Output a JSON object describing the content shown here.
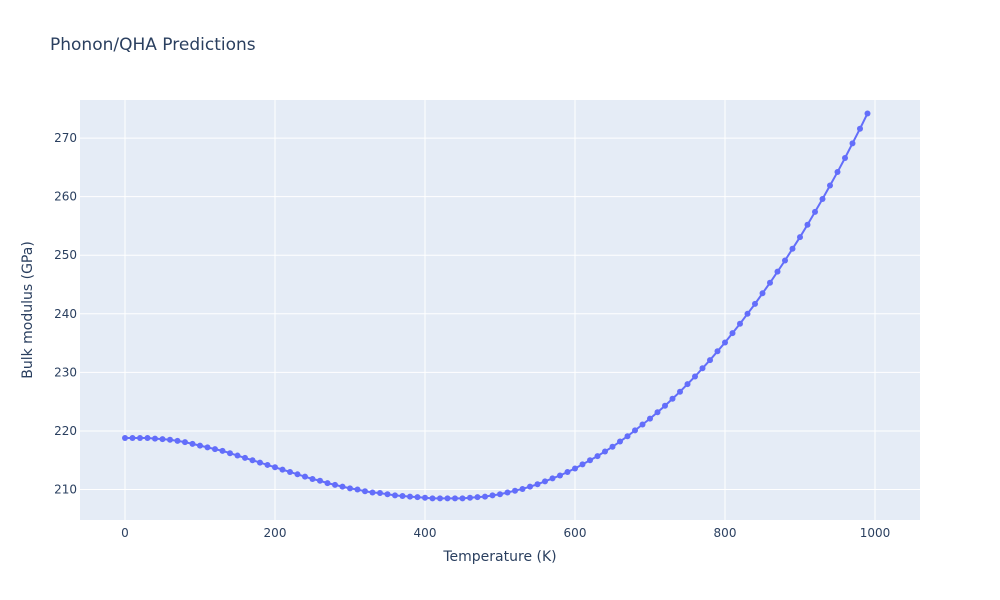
{
  "chart_data": {
    "type": "line",
    "title": "Phonon/QHA Predictions",
    "xlabel": "Temperature (K)",
    "ylabel": "Bulk modulus (GPa)",
    "xlim": [
      -60,
      1060
    ],
    "ylim": [
      204.8,
      276.5
    ],
    "x_ticks": [
      0,
      200,
      400,
      600,
      800,
      1000
    ],
    "y_ticks": [
      210,
      220,
      230,
      240,
      250,
      260,
      270
    ],
    "grid": true,
    "legend": "none",
    "colors": {
      "series": "#636efa",
      "plot_background": "#e5ecf6",
      "grid": "#ffffff",
      "text": "#2a3f5f"
    },
    "series": [
      {
        "x": [
          0,
          10,
          20,
          30,
          40,
          50,
          60,
          70,
          80,
          90,
          100,
          110,
          120,
          130,
          140,
          150,
          160,
          170,
          180,
          190,
          200,
          210,
          220,
          230,
          240,
          250,
          260,
          270,
          280,
          290,
          300,
          310,
          320,
          330,
          340,
          350,
          360,
          370,
          380,
          390,
          400,
          410,
          420,
          430,
          440,
          450,
          460,
          470,
          480,
          490,
          500,
          510,
          520,
          530,
          540,
          550,
          560,
          570,
          580,
          590,
          600,
          610,
          620,
          630,
          640,
          650,
          660,
          670,
          680,
          690,
          700,
          710,
          720,
          730,
          740,
          750,
          760,
          770,
          780,
          790,
          800,
          810,
          820,
          830,
          840,
          850,
          860,
          870,
          880,
          890,
          900,
          910,
          920,
          930,
          940,
          950,
          960,
          970,
          980,
          990
        ],
        "y": [
          218.8,
          218.8,
          218.8,
          218.8,
          218.7,
          218.6,
          218.5,
          218.3,
          218.1,
          217.8,
          217.5,
          217.2,
          216.9,
          216.6,
          216.2,
          215.8,
          215.4,
          215.0,
          214.6,
          214.2,
          213.8,
          213.4,
          213.0,
          212.6,
          212.2,
          211.8,
          211.5,
          211.1,
          210.8,
          210.5,
          210.2,
          210.0,
          209.7,
          209.5,
          209.4,
          209.2,
          209.0,
          208.9,
          208.8,
          208.7,
          208.6,
          208.5,
          208.5,
          208.5,
          208.5,
          208.5,
          208.6,
          208.7,
          208.8,
          209.0,
          209.2,
          209.5,
          209.8,
          210.1,
          210.5,
          210.9,
          211.4,
          211.9,
          212.4,
          213.0,
          213.6,
          214.3,
          215.0,
          215.7,
          216.5,
          217.3,
          218.2,
          219.1,
          220.1,
          221.1,
          222.1,
          223.2,
          224.3,
          225.5,
          226.7,
          228.0,
          229.3,
          230.7,
          232.1,
          233.6,
          235.1,
          236.7,
          238.3,
          240.0,
          241.7,
          243.5,
          245.3,
          247.2,
          249.1,
          251.1,
          253.1,
          255.2,
          257.4,
          259.6,
          261.9,
          264.2,
          266.6,
          269.1,
          271.6,
          274.2
        ]
      }
    ]
  }
}
